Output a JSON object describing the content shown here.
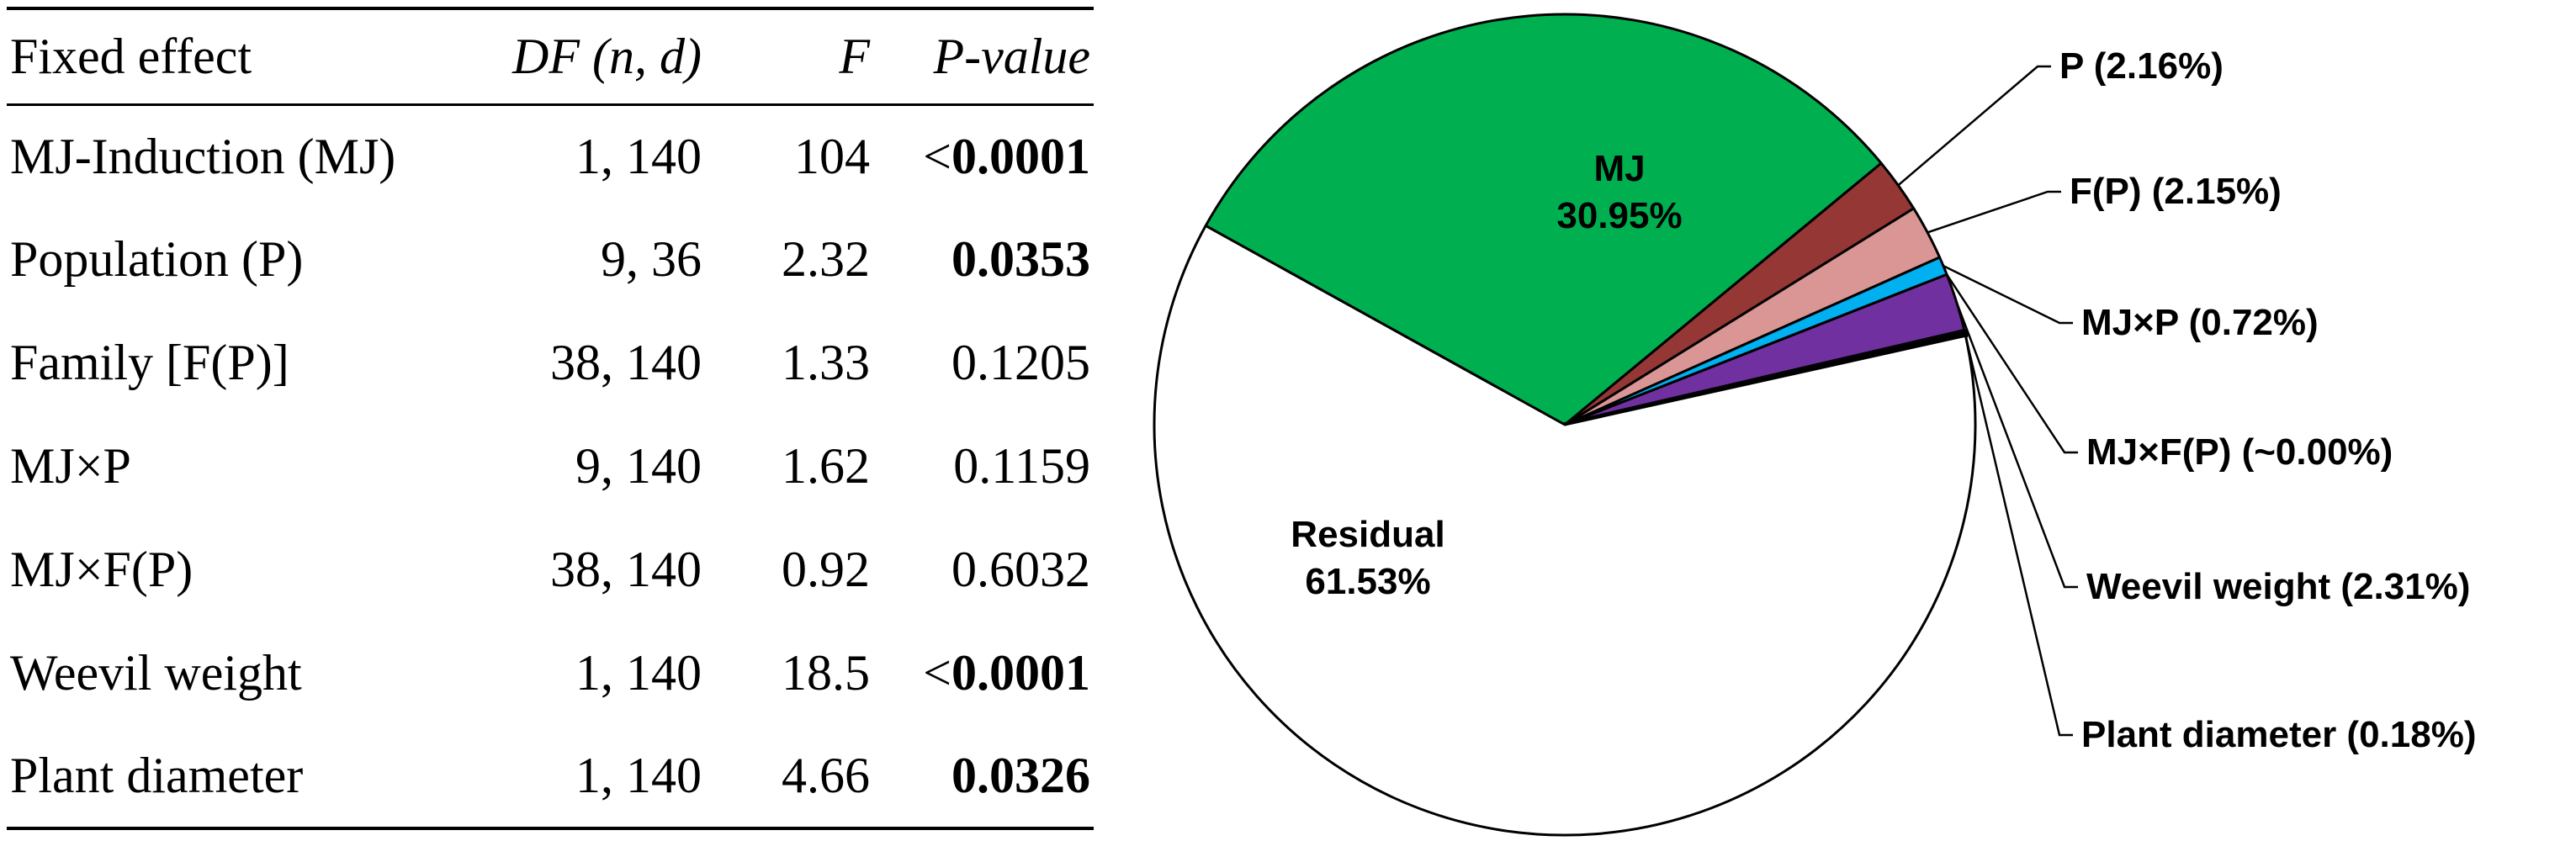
{
  "table": {
    "headers": {
      "effect": "Fixed effect",
      "df": "DF (n, d)",
      "f": "F",
      "p": "P-value"
    },
    "rows": [
      {
        "effect": "MJ-Induction (MJ)",
        "df": "1, 140",
        "f": "104",
        "p_prefix": "<",
        "p": "0.0001",
        "significant": true
      },
      {
        "effect": "Population (P)",
        "df": "9, 36",
        "f": "2.32",
        "p_prefix": "",
        "p": "0.0353",
        "significant": true
      },
      {
        "effect": "Family [F(P)]",
        "df": "38, 140",
        "f": "1.33",
        "p_prefix": "",
        "p": "0.1205",
        "significant": false
      },
      {
        "effect": "MJ×P",
        "df": "9, 140",
        "f": "1.62",
        "p_prefix": "",
        "p": "0.1159",
        "significant": false
      },
      {
        "effect": "MJ×F(P)",
        "df": "38, 140",
        "f": "0.92",
        "p_prefix": "",
        "p": "0.6032",
        "significant": false
      },
      {
        "effect": "Weevil weight",
        "df": "1, 140",
        "f": "18.5",
        "p_prefix": "<",
        "p": "0.0001",
        "significant": true
      },
      {
        "effect": "Plant diameter",
        "df": "1, 140",
        "f": "4.66",
        "p_prefix": "",
        "p": "0.0326",
        "significant": true
      }
    ]
  },
  "chart_data": {
    "type": "pie",
    "title": "",
    "slices": [
      {
        "label": "MJ",
        "value": 30.95,
        "display": "30.95%",
        "color": "#00b050",
        "label_position": "inside"
      },
      {
        "label": "P",
        "value": 2.16,
        "display": "P (2.16%)",
        "color": "#953735",
        "label_position": "outside"
      },
      {
        "label": "F(P)",
        "value": 2.15,
        "display": "F(P) (2.15%)",
        "color": "#d99694",
        "label_position": "outside"
      },
      {
        "label": "MJ×P",
        "value": 0.72,
        "display": "MJ×P (0.72%)",
        "color": "#00b0f0",
        "label_position": "outside"
      },
      {
        "label": "MJ×F(P)",
        "value": 0.0,
        "display": "MJ×F(P) (~0.00%)",
        "color": "#000000",
        "label_position": "outside"
      },
      {
        "label": "Weevil weight",
        "value": 2.31,
        "display": "Weevil weight (2.31%)",
        "color": "#7030a0",
        "label_position": "outside"
      },
      {
        "label": "Plant diameter",
        "value": 0.18,
        "display": "Plant diameter (0.18%)",
        "color": "#000000",
        "label_position": "outside"
      },
      {
        "label": "Residual",
        "value": 61.53,
        "display": "61.53%",
        "color": "#ffffff",
        "label_position": "inside"
      }
    ]
  }
}
